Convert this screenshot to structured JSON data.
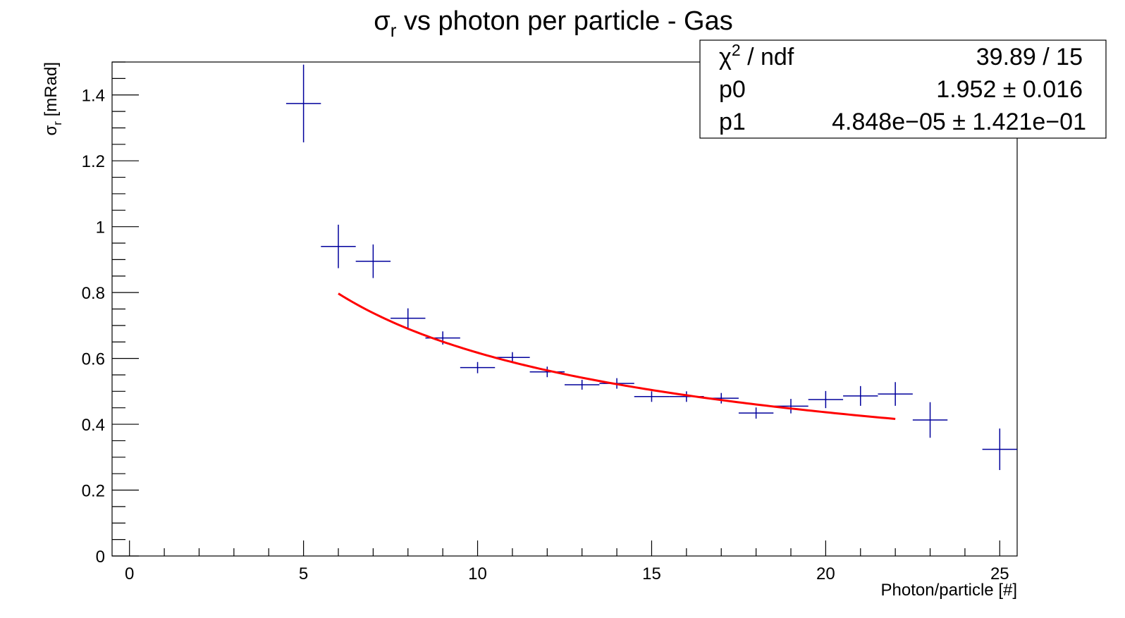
{
  "chart_data": {
    "type": "scatter",
    "title_main": "σ",
    "title_sub": "r",
    "title_rest": " vs photon per particle - Gas",
    "xlabel": "Photon/particle [#]",
    "ylabel_main": "σ",
    "ylabel_sub": "r",
    "ylabel_rest": " [mRad]",
    "xlim": [
      -0.5,
      25.5
    ],
    "ylim": [
      0,
      1.5
    ],
    "xticks": [
      0,
      5,
      10,
      15,
      20,
      25
    ],
    "xtick_labels": [
      "0",
      "5",
      "10",
      "15",
      "20",
      "25"
    ],
    "yticks": [
      0,
      0.2,
      0.4,
      0.6,
      0.8,
      1.0,
      1.2,
      1.4
    ],
    "ytick_labels": [
      "0",
      "0.2",
      "0.4",
      "0.6",
      "0.8",
      "1",
      "1.2",
      "1.4"
    ],
    "grid": false,
    "series": [
      {
        "color": "#00009c",
        "x": [
          5,
          6,
          7,
          8,
          9,
          10,
          11,
          12,
          13,
          14,
          15,
          16,
          17,
          18,
          19,
          20,
          21,
          22,
          23,
          25
        ],
        "y": [
          1.374,
          0.94,
          0.895,
          0.722,
          0.662,
          0.572,
          0.603,
          0.559,
          0.52,
          0.524,
          0.484,
          0.484,
          0.479,
          0.434,
          0.455,
          0.475,
          0.486,
          0.492,
          0.413,
          0.324
        ],
        "yerr": [
          0.118,
          0.066,
          0.051,
          0.03,
          0.02,
          0.017,
          0.016,
          0.016,
          0.015,
          0.016,
          0.016,
          0.016,
          0.016,
          0.017,
          0.022,
          0.026,
          0.03,
          0.036,
          0.054,
          0.063
        ],
        "xerr": 0.5
      }
    ],
    "fit": {
      "color": "#ff0000",
      "function": "p0/sqrt(x)+p1",
      "p0": 1.952,
      "p1": 4.848e-05,
      "x_range": [
        6,
        22
      ]
    },
    "stats_box": {
      "rows": [
        {
          "label_main": "χ",
          "label_sup": "2",
          "label_rest": " / ndf",
          "value": "39.89 / 15"
        },
        {
          "label_main": "p0",
          "label_sup": "",
          "label_rest": "",
          "value": "1.952 ± 0.016"
        },
        {
          "label_main": "p1",
          "label_sup": "",
          "label_rest": "",
          "value": "4.848e−05 ± 1.421e−01"
        }
      ]
    }
  }
}
